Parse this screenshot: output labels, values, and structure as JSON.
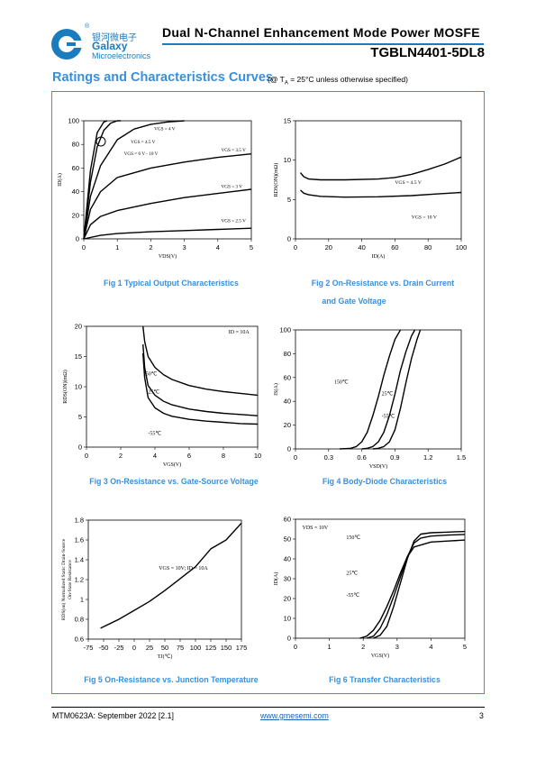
{
  "header": {
    "logo_cn": "银河微电子",
    "logo_en1": "Galaxy",
    "logo_en2": "Microelectronics",
    "registered": "®",
    "title": "Dual N-Channel Enhancement Mode Power MOSFE",
    "part": "TGBLN4401-5DL8"
  },
  "section": {
    "title": "Ratings and Characteristics Curves",
    "note": "(@ TA = 25°C unless otherwise specified)"
  },
  "captions": {
    "fig1": "Fig 1    Typical Output Characteristics",
    "fig2a": "Fig 2    On-Resistance vs. Drain Current",
    "fig2b": "and Gate Voltage",
    "fig3": "Fig 3    On-Resistance vs. Gate-Source Voltage",
    "fig4": "Fig 4    Body-Diode Characteristics",
    "fig5": "Fig 5    On-Resistance vs. Junction Temperature",
    "fig6": "Fig 6    Transfer Characteristics"
  },
  "footer": {
    "left": "MTM0623A: September 2022 [2.1]",
    "mid": "www.gmesemi.com",
    "right": "3"
  },
  "colors": {
    "accent": "#3a8fd9",
    "brand": "#1b7bbf",
    "line": "#000000"
  },
  "chart_data": [
    {
      "id": "fig1",
      "type": "line",
      "xlabel": "VDS(V)",
      "ylabel": "ID(A)",
      "xlim": [
        0,
        5
      ],
      "ylim": [
        0,
        100
      ],
      "xticks": [
        "0",
        "1",
        "2",
        "3",
        "4",
        "5"
      ],
      "yticks": [
        "0",
        "20",
        "40",
        "60",
        "80",
        "100"
      ],
      "series": [
        {
          "name": "VGS = 2.5 V",
          "x": [
            0,
            0.5,
            1,
            2,
            3,
            4,
            5
          ],
          "y": [
            0,
            3,
            4.5,
            6,
            7,
            8,
            9
          ]
        },
        {
          "name": "VGS = 3 V",
          "x": [
            0,
            0.2,
            0.5,
            1,
            2,
            3,
            4,
            5
          ],
          "y": [
            0,
            12,
            19,
            24,
            30,
            35,
            38.5,
            42
          ]
        },
        {
          "name": "VGS = 3.5 V",
          "x": [
            0,
            0.2,
            0.5,
            1,
            2,
            3,
            4,
            5
          ],
          "y": [
            0,
            25,
            40,
            52,
            60,
            65,
            69,
            72
          ]
        },
        {
          "name": "VGS = 4 V",
          "x": [
            0,
            0.2,
            0.5,
            1,
            1.5,
            2,
            2.5,
            3
          ],
          "y": [
            0,
            36,
            62,
            84,
            93,
            97,
            99,
            100
          ]
        },
        {
          "name": "VGS = 4.5 V",
          "x": [
            0,
            0.2,
            0.4,
            0.6,
            0.8,
            1,
            1.1
          ],
          "y": [
            0,
            48,
            78,
            92,
            98,
            100,
            100
          ]
        },
        {
          "name": "VGS = 6 V - 10 V",
          "x": [
            0,
            0.2,
            0.4,
            0.6,
            0.7
          ],
          "y": [
            0,
            58,
            90,
            99,
            100
          ]
        }
      ],
      "annotations": [
        "VGS = 4 V",
        "VGS = 4.5 V",
        "VGS = 6 V - 10 V",
        "VGS = 3.5 V",
        "VGS = 3 V",
        "VGS = 2.5 V"
      ]
    },
    {
      "id": "fig2",
      "type": "line",
      "xlabel": "ID(A)",
      "ylabel": "RDS(ON)(mΩ)",
      "xlim": [
        0,
        100
      ],
      "ylim": [
        0,
        15
      ],
      "xticks": [
        "0",
        "20",
        "40",
        "60",
        "80",
        "100"
      ],
      "yticks": [
        "0",
        "5",
        "10",
        "15"
      ],
      "series": [
        {
          "name": "VGS = 4.5 V",
          "x": [
            3,
            5,
            8,
            15,
            30,
            50,
            60,
            70,
            80,
            90,
            100
          ],
          "y": [
            8.4,
            7.9,
            7.6,
            7.5,
            7.5,
            7.6,
            7.8,
            8.2,
            8.8,
            9.5,
            10.4
          ]
        },
        {
          "name": "VGS = 10 V",
          "x": [
            3,
            5,
            8,
            15,
            30,
            50,
            70,
            85,
            100
          ],
          "y": [
            6.2,
            5.8,
            5.6,
            5.4,
            5.3,
            5.35,
            5.5,
            5.7,
            5.9
          ]
        }
      ],
      "annotations": [
        "VGS = 4.5 V",
        "VGS = 10 V"
      ]
    },
    {
      "id": "fig3",
      "type": "line",
      "xlabel": "VGS(V)",
      "ylabel": "RDS(ON)(mΩ)",
      "xlim": [
        0,
        10
      ],
      "ylim": [
        0,
        20
      ],
      "xticks": [
        "0",
        "2",
        "4",
        "6",
        "8",
        "10"
      ],
      "yticks": [
        "0",
        "5",
        "10",
        "15",
        "20"
      ],
      "series": [
        {
          "name": "150℃",
          "x": [
            3.3,
            3.4,
            3.6,
            4,
            4.5,
            5,
            6,
            7,
            8,
            9,
            10
          ],
          "y": [
            20,
            17.5,
            15,
            13.2,
            12,
            11.2,
            10.2,
            9.6,
            9.2,
            8.9,
            8.6
          ]
        },
        {
          "name": "25℃",
          "x": [
            3.3,
            3.4,
            3.6,
            4,
            4.5,
            5,
            6,
            7,
            8,
            9,
            10
          ],
          "y": [
            17,
            13.2,
            10.2,
            8.6,
            7.6,
            7,
            6.3,
            5.9,
            5.6,
            5.4,
            5.2
          ]
        },
        {
          "name": "-55℃",
          "x": [
            3.3,
            3.4,
            3.6,
            4,
            4.5,
            5,
            6,
            7,
            8,
            9,
            10
          ],
          "y": [
            15.5,
            11.5,
            8.2,
            6.5,
            5.6,
            5.1,
            4.6,
            4.3,
            4.1,
            3.9,
            3.8
          ]
        }
      ],
      "annotations": [
        "ID = 10A",
        "150℃",
        "25℃",
        "-55℃"
      ]
    },
    {
      "id": "fig4",
      "type": "line",
      "xlabel": "VSD(V)",
      "ylabel": "IS(A)",
      "xlim": [
        0,
        1.5
      ],
      "ylim": [
        0,
        100
      ],
      "xticks": [
        "0",
        "0.3",
        "0.6",
        "0.9",
        "1.2",
        "1.5"
      ],
      "yticks": [
        "0",
        "20",
        "40",
        "60",
        "80",
        "100"
      ],
      "series": [
        {
          "name": "150℃",
          "x": [
            0.4,
            0.5,
            0.55,
            0.6,
            0.65,
            0.7,
            0.75,
            0.8,
            0.85,
            0.9,
            0.95
          ],
          "y": [
            0,
            0.5,
            2,
            6,
            14,
            28,
            44,
            62,
            78,
            92,
            100
          ]
        },
        {
          "name": "25℃",
          "x": [
            0.6,
            0.65,
            0.7,
            0.75,
            0.8,
            0.85,
            0.9,
            0.95,
            1,
            1.05,
            1.08
          ],
          "y": [
            0,
            0.5,
            2,
            6,
            14,
            28,
            46,
            66,
            82,
            95,
            100
          ]
        },
        {
          "name": "-55℃",
          "x": [
            0.7,
            0.75,
            0.8,
            0.85,
            0.9,
            0.95,
            1,
            1.05,
            1.1,
            1.13
          ],
          "y": [
            0,
            0.5,
            2,
            6,
            16,
            34,
            56,
            76,
            92,
            100
          ]
        }
      ],
      "annotations": [
        "150℃",
        "25℃",
        "-55℃"
      ]
    },
    {
      "id": "fig5",
      "type": "line",
      "xlabel": "TJ(℃)",
      "ylabel": "RDS(on) Normalized Static Drain-Source On-State Resistance",
      "xlim": [
        -75,
        175
      ],
      "ylim": [
        0.6,
        1.8
      ],
      "xticks": [
        "-75",
        "-50",
        "-25",
        "0",
        "25",
        "50",
        "75",
        "100",
        "125",
        "150",
        "175"
      ],
      "yticks": [
        "0.6",
        "0.8",
        "1",
        "1.2",
        "1.4",
        "1.6",
        "1.8"
      ],
      "series": [
        {
          "name": "VGS = 10V; ID = 10A",
          "x": [
            -55,
            -25,
            0,
            25,
            50,
            75,
            100,
            125,
            150,
            175
          ],
          "y": [
            0.71,
            0.8,
            0.89,
            0.98,
            1.09,
            1.21,
            1.33,
            1.51,
            1.6,
            1.77
          ]
        }
      ],
      "annotations": [
        "VGS = 10V; ID = 10A"
      ]
    },
    {
      "id": "fig6",
      "type": "line",
      "xlabel": "VGS(V)",
      "ylabel": "ID(A)",
      "xlim": [
        0,
        5
      ],
      "ylim": [
        0,
        60
      ],
      "xticks": [
        "0",
        "1",
        "2",
        "3",
        "4",
        "5"
      ],
      "yticks": [
        "0",
        "10",
        "20",
        "30",
        "40",
        "50",
        "60"
      ],
      "series": [
        {
          "name": "150℃",
          "x": [
            1.9,
            2.1,
            2.3,
            2.5,
            2.7,
            2.9,
            3.1,
            3.3,
            3.5,
            4,
            4.5,
            5
          ],
          "y": [
            0,
            1,
            4,
            9,
            16,
            24,
            33,
            41,
            46,
            48.5,
            49,
            49.5
          ]
        },
        {
          "name": "25℃",
          "x": [
            2.1,
            2.3,
            2.5,
            2.7,
            2.9,
            3.1,
            3.3,
            3.5,
            3.7,
            4,
            4.5,
            5
          ],
          "y": [
            0,
            1,
            5,
            12,
            21,
            31,
            41,
            48,
            50.5,
            51.5,
            52,
            52.3
          ]
        },
        {
          "name": "-55℃",
          "x": [
            2.3,
            2.5,
            2.7,
            2.9,
            3.1,
            3.3,
            3.5,
            3.7,
            4,
            4.5,
            5
          ],
          "y": [
            0,
            1.5,
            6,
            16,
            28,
            40,
            49,
            52.5,
            53.2,
            53.5,
            53.8
          ]
        }
      ],
      "annotations": [
        "VDS = 10V",
        "150℃",
        "25℃",
        "-55℃"
      ]
    }
  ]
}
